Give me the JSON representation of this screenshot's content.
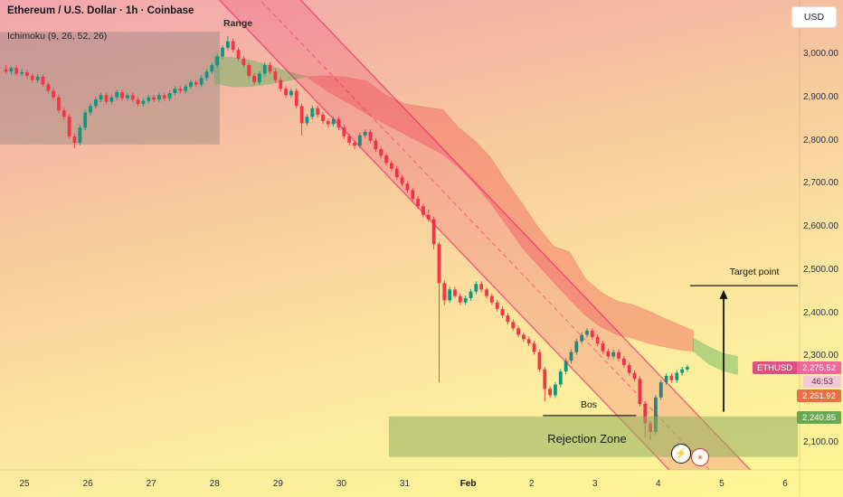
{
  "header": {
    "symbol_title": "Ethereum / U.S. Dollar · 1h · Coinbase",
    "indicator_label": "Ichimoku (9, 26, 52, 26)",
    "currency_button": "USD"
  },
  "icons": {
    "flash": "⚡",
    "seal": "✳"
  },
  "price_scale": {
    "tick_labels": [
      "3,000.00",
      "2,900.00",
      "2,800.00",
      "2,700.00",
      "2,600.00",
      "2,500.00",
      "2,400.00",
      "2,300.00",
      "2,100.00"
    ],
    "tags": {
      "symbol": "ETHUSD",
      "last_price": "2,275.52",
      "countdown": "46:53",
      "line1": "2,251.92",
      "line2": "2,240.85"
    },
    "tag_colors": {
      "last": "#f0679a",
      "line1": "#ee6d45",
      "line2": "#67a853"
    }
  },
  "time_scale": {
    "ticks": [
      {
        "label": "25",
        "day": 0
      },
      {
        "label": "26",
        "day": 1
      },
      {
        "label": "27",
        "day": 2
      },
      {
        "label": "28",
        "day": 3
      },
      {
        "label": "29",
        "day": 4
      },
      {
        "label": "30",
        "day": 5
      },
      {
        "label": "31",
        "day": 6
      },
      {
        "label": "Feb",
        "day": 7,
        "bold": true
      },
      {
        "label": "2",
        "day": 8
      },
      {
        "label": "3",
        "day": 9
      },
      {
        "label": "4",
        "day": 10
      },
      {
        "label": "5",
        "day": 11
      },
      {
        "label": "6",
        "day": 12
      }
    ]
  },
  "annotations": {
    "range_box": {
      "label": "Range",
      "from_day": -0.39,
      "to_day": 3.08,
      "price_top": 3052,
      "price_bottom": 2791
    },
    "rejection_zone": {
      "label": "Rejection Zone",
      "from_day": 5.75,
      "to_day": 12.2,
      "price_top": 2161,
      "price_bottom": 2067
    },
    "bos": {
      "label": "Bos",
      "from_day": 8.18,
      "to_day": 9.65,
      "price": 2163
    },
    "target": {
      "label": "Target point",
      "line_from_day": 10.5,
      "line_to_day": 12.2,
      "line_price": 2464,
      "arrow_day": 11.03,
      "arrow_from_price": 2172,
      "arrow_to_price": 2452
    }
  },
  "chart_data": {
    "type": "candlestick",
    "title": "Ethereum / U.S. Dollar · 1h · Coinbase",
    "interval": "1h",
    "exchange": "Coinbase",
    "indicator": "Ichimoku (9, 26, 52, 26)",
    "last_price": 2275.52,
    "price_range_visible": [
      2037,
      3126
    ],
    "x_axis_labels": [
      "25",
      "26",
      "27",
      "28",
      "29",
      "30",
      "31",
      "Feb",
      "2",
      "3",
      "4",
      "5",
      "6"
    ],
    "candle_resolution_hours": 2,
    "start_day_offset": -0.3333,
    "colors": {
      "up": "#089981",
      "down": "#f23645"
    },
    "candles": [
      [
        2965,
        2975,
        2955,
        2960
      ],
      [
        2960,
        2972,
        2952,
        2968
      ],
      [
        2968,
        2976,
        2950,
        2955
      ],
      [
        2955,
        2966,
        2949,
        2958
      ],
      [
        2958,
        2964,
        2944,
        2950
      ],
      [
        2950,
        2956,
        2934,
        2940
      ],
      [
        2940,
        2954,
        2934,
        2948
      ],
      [
        2948,
        2954,
        2924,
        2930
      ],
      [
        2930,
        2936,
        2909,
        2915
      ],
      [
        2915,
        2921,
        2894,
        2900
      ],
      [
        2900,
        2906,
        2864,
        2870
      ],
      [
        2870,
        2876,
        2849,
        2855
      ],
      [
        2855,
        2861,
        2804,
        2810
      ],
      [
        2810,
        2816,
        2782,
        2795
      ],
      [
        2795,
        2836,
        2789,
        2830
      ],
      [
        2830,
        2871,
        2824,
        2865
      ],
      [
        2865,
        2886,
        2859,
        2880
      ],
      [
        2880,
        2901,
        2874,
        2895
      ],
      [
        2895,
        2911,
        2889,
        2905
      ],
      [
        2905,
        2911,
        2884,
        2890
      ],
      [
        2890,
        2906,
        2884,
        2900
      ],
      [
        2900,
        2918,
        2894,
        2912
      ],
      [
        2912,
        2918,
        2892,
        2898
      ],
      [
        2898,
        2911,
        2892,
        2905
      ],
      [
        2905,
        2911,
        2889,
        2895
      ],
      [
        2895,
        2901,
        2879,
        2885
      ],
      [
        2885,
        2898,
        2879,
        2892
      ],
      [
        2892,
        2906,
        2886,
        2900
      ],
      [
        2900,
        2906,
        2889,
        2895
      ],
      [
        2895,
        2911,
        2889,
        2905
      ],
      [
        2905,
        2911,
        2892,
        2898
      ],
      [
        2898,
        2916,
        2892,
        2910
      ],
      [
        2910,
        2926,
        2904,
        2920
      ],
      [
        2920,
        2926,
        2909,
        2915
      ],
      [
        2915,
        2931,
        2909,
        2925
      ],
      [
        2925,
        2941,
        2919,
        2935
      ],
      [
        2935,
        2941,
        2924,
        2930
      ],
      [
        2930,
        2951,
        2924,
        2945
      ],
      [
        2945,
        2966,
        2939,
        2960
      ],
      [
        2960,
        2981,
        2954,
        2975
      ],
      [
        2975,
        3001,
        2969,
        2995
      ],
      [
        2995,
        3021,
        2989,
        3015
      ],
      [
        3015,
        3042,
        3009,
        3030
      ],
      [
        3030,
        3036,
        3004,
        3010
      ],
      [
        3010,
        3016,
        2984,
        2990
      ],
      [
        2990,
        2996,
        2969,
        2975
      ],
      [
        2975,
        2981,
        2944,
        2950
      ],
      [
        2950,
        2956,
        2929,
        2935
      ],
      [
        2935,
        2961,
        2929,
        2955
      ],
      [
        2955,
        2981,
        2949,
        2975
      ],
      [
        2975,
        2981,
        2954,
        2960
      ],
      [
        2960,
        2966,
        2934,
        2940
      ],
      [
        2940,
        2946,
        2914,
        2920
      ],
      [
        2920,
        2926,
        2899,
        2905
      ],
      [
        2905,
        2921,
        2899,
        2915
      ],
      [
        2915,
        2921,
        2874,
        2880
      ],
      [
        2880,
        2886,
        2812,
        2840
      ],
      [
        2840,
        2861,
        2834,
        2855
      ],
      [
        2855,
        2881,
        2849,
        2875
      ],
      [
        2875,
        2881,
        2854,
        2860
      ],
      [
        2860,
        2866,
        2839,
        2845
      ],
      [
        2845,
        2851,
        2830,
        2838
      ],
      [
        2838,
        2856,
        2832,
        2850
      ],
      [
        2850,
        2856,
        2824,
        2830
      ],
      [
        2830,
        2836,
        2804,
        2810
      ],
      [
        2810,
        2816,
        2789,
        2795
      ],
      [
        2795,
        2801,
        2780,
        2788
      ],
      [
        2788,
        2818,
        2782,
        2812
      ],
      [
        2812,
        2826,
        2806,
        2820
      ],
      [
        2820,
        2826,
        2794,
        2800
      ],
      [
        2800,
        2806,
        2774,
        2780
      ],
      [
        2780,
        2786,
        2759,
        2765
      ],
      [
        2765,
        2771,
        2742,
        2748
      ],
      [
        2748,
        2754,
        2729,
        2735
      ],
      [
        2735,
        2741,
        2709,
        2715
      ],
      [
        2715,
        2721,
        2694,
        2700
      ],
      [
        2700,
        2706,
        2679,
        2685
      ],
      [
        2685,
        2691,
        2659,
        2665
      ],
      [
        2665,
        2671,
        2642,
        2648
      ],
      [
        2648,
        2654,
        2622,
        2628
      ],
      [
        2628,
        2640,
        2612,
        2618
      ],
      [
        2618,
        2624,
        2548,
        2560
      ],
      [
        2560,
        2566,
        2240,
        2470
      ],
      [
        2470,
        2476,
        2419,
        2430
      ],
      [
        2430,
        2461,
        2424,
        2455
      ],
      [
        2455,
        2461,
        2434,
        2440
      ],
      [
        2440,
        2446,
        2419,
        2425
      ],
      [
        2425,
        2441,
        2419,
        2435
      ],
      [
        2435,
        2456,
        2429,
        2450
      ],
      [
        2450,
        2474,
        2444,
        2468
      ],
      [
        2468,
        2474,
        2449,
        2455
      ],
      [
        2455,
        2461,
        2434,
        2440
      ],
      [
        2440,
        2446,
        2419,
        2425
      ],
      [
        2425,
        2431,
        2404,
        2410
      ],
      [
        2410,
        2416,
        2389,
        2395
      ],
      [
        2395,
        2401,
        2374,
        2380
      ],
      [
        2380,
        2386,
        2359,
        2365
      ],
      [
        2365,
        2371,
        2344,
        2350
      ],
      [
        2350,
        2356,
        2334,
        2340
      ],
      [
        2340,
        2346,
        2324,
        2330
      ],
      [
        2330,
        2336,
        2304,
        2310
      ],
      [
        2310,
        2316,
        2264,
        2270
      ],
      [
        2270,
        2276,
        2196,
        2225
      ],
      [
        2225,
        2231,
        2204,
        2210
      ],
      [
        2210,
        2241,
        2204,
        2235
      ],
      [
        2235,
        2271,
        2229,
        2265
      ],
      [
        2265,
        2296,
        2259,
        2290
      ],
      [
        2290,
        2316,
        2284,
        2310
      ],
      [
        2310,
        2341,
        2304,
        2335
      ],
      [
        2335,
        2356,
        2329,
        2350
      ],
      [
        2350,
        2366,
        2344,
        2360
      ],
      [
        2360,
        2366,
        2339,
        2345
      ],
      [
        2345,
        2351,
        2324,
        2330
      ],
      [
        2330,
        2336,
        2306,
        2312
      ],
      [
        2312,
        2318,
        2294,
        2300
      ],
      [
        2300,
        2316,
        2294,
        2310
      ],
      [
        2310,
        2316,
        2289,
        2295
      ],
      [
        2295,
        2301,
        2274,
        2280
      ],
      [
        2280,
        2286,
        2256,
        2262
      ],
      [
        2262,
        2268,
        2242,
        2248
      ],
      [
        2248,
        2254,
        2184,
        2190
      ],
      [
        2190,
        2196,
        2113,
        2145
      ],
      [
        2145,
        2151,
        2108,
        2125
      ],
      [
        2125,
        2211,
        2119,
        2205
      ],
      [
        2205,
        2246,
        2199,
        2240
      ],
      [
        2240,
        2261,
        2234,
        2255
      ],
      [
        2255,
        2261,
        2239,
        2245
      ],
      [
        2245,
        2268,
        2239,
        2262
      ],
      [
        2262,
        2276,
        2256,
        2270
      ],
      [
        2270,
        2281,
        2264,
        2275.5
      ]
    ],
    "ichimoku_cloud": {
      "segments": [
        {
          "trend": "bullish",
          "color": "#4caf50",
          "top": [
            [
              3.0,
              2995
            ],
            [
              3.3,
              2992
            ],
            [
              3.6,
              2985
            ],
            [
              3.9,
              2972
            ],
            [
              4.2,
              2958
            ],
            [
              4.45,
              2948
            ]
          ],
          "bottom": [
            [
              3.0,
              2933
            ],
            [
              3.3,
              2924
            ],
            [
              3.6,
              2926
            ],
            [
              3.9,
              2932
            ],
            [
              4.2,
              2940
            ],
            [
              4.45,
              2948
            ]
          ]
        },
        {
          "trend": "bearish",
          "color": "#ef5350",
          "top": [
            [
              4.45,
              2948
            ],
            [
              4.8,
              2950
            ],
            [
              5.1,
              2946
            ],
            [
              5.4,
              2938
            ],
            [
              5.7,
              2905
            ],
            [
              6.0,
              2885
            ],
            [
              6.3,
              2878
            ],
            [
              6.6,
              2872
            ],
            [
              6.85,
              2830
            ],
            [
              7.1,
              2800
            ],
            [
              7.35,
              2762
            ],
            [
              7.6,
              2705
            ],
            [
              7.85,
              2655
            ],
            [
              8.1,
              2600
            ],
            [
              8.35,
              2555
            ],
            [
              8.6,
              2542
            ],
            [
              8.85,
              2480
            ],
            [
              9.1,
              2448
            ],
            [
              9.35,
              2428
            ],
            [
              9.6,
              2420
            ],
            [
              9.85,
              2405
            ],
            [
              10.1,
              2388
            ],
            [
              10.35,
              2372
            ],
            [
              10.55,
              2360
            ]
          ],
          "bottom": [
            [
              4.45,
              2948
            ],
            [
              4.8,
              2912
            ],
            [
              5.1,
              2888
            ],
            [
              5.4,
              2862
            ],
            [
              5.7,
              2838
            ],
            [
              6.0,
              2815
            ],
            [
              6.3,
              2792
            ],
            [
              6.6,
              2768
            ],
            [
              6.85,
              2738
            ],
            [
              7.1,
              2700
            ],
            [
              7.35,
              2655
            ],
            [
              7.6,
              2605
            ],
            [
              7.85,
              2552
            ],
            [
              8.1,
              2512
            ],
            [
              8.35,
              2472
            ],
            [
              8.6,
              2432
            ],
            [
              8.85,
              2395
            ],
            [
              9.1,
              2368
            ],
            [
              9.35,
              2350
            ],
            [
              9.6,
              2342
            ],
            [
              9.85,
              2330
            ],
            [
              10.1,
              2322
            ],
            [
              10.35,
              2315
            ],
            [
              10.55,
              2312
            ]
          ]
        },
        {
          "trend": "bullish",
          "color": "#4caf50",
          "top": [
            [
              10.55,
              2342
            ],
            [
              10.8,
              2322
            ],
            [
              11.0,
              2308
            ],
            [
              11.25,
              2300
            ]
          ],
          "bottom": [
            [
              10.55,
              2312
            ],
            [
              10.8,
              2282
            ],
            [
              11.0,
              2268
            ],
            [
              11.25,
              2258
            ]
          ]
        }
      ]
    },
    "channel": {
      "type": "parallel-channel-descending",
      "anchor1_day": 3.08,
      "anchor1_price": 3125,
      "anchor2_day": 10.1,
      "anchor2_price": 2048,
      "offset_days": 1.28,
      "color": "#e91e63"
    }
  }
}
